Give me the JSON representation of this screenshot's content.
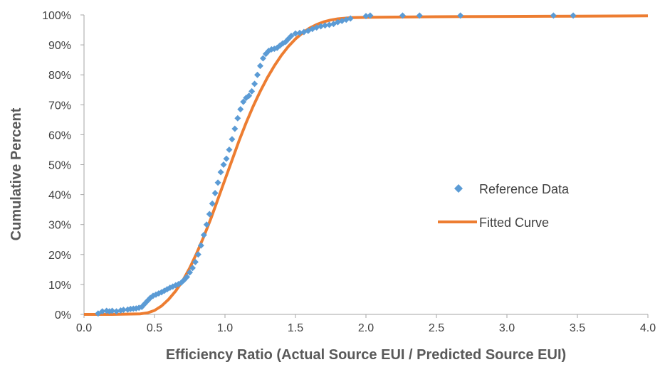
{
  "chart_data": {
    "type": "scatter",
    "title": "",
    "xlabel": "Efficiency Ratio (Actual Source EUI / Predicted Source EUI)",
    "ylabel": "Cumulative Percent",
    "xlim": [
      0,
      4
    ],
    "ylim": [
      0,
      100
    ],
    "x_ticks": [
      "0.0",
      "0.5",
      "1.0",
      "1.5",
      "2.0",
      "2.5",
      "3.0",
      "3.5",
      "4.0"
    ],
    "y_ticks": [
      "0%",
      "10%",
      "20%",
      "30%",
      "40%",
      "50%",
      "60%",
      "70%",
      "80%",
      "90%",
      "100%"
    ],
    "grid": false,
    "legend_position": "right",
    "series": [
      {
        "name": "Reference Data",
        "kind": "scatter",
        "marker": "diamond",
        "color": "#5B9BD5",
        "points": [
          [
            0.1,
            0.3
          ],
          [
            0.13,
            1.0
          ],
          [
            0.16,
            1.2
          ],
          [
            0.18,
            1.0
          ],
          [
            0.2,
            1.2
          ],
          [
            0.23,
            1.0
          ],
          [
            0.26,
            1.3
          ],
          [
            0.28,
            1.5
          ],
          [
            0.31,
            1.6
          ],
          [
            0.33,
            1.8
          ],
          [
            0.35,
            1.9
          ],
          [
            0.37,
            2.0
          ],
          [
            0.39,
            2.2
          ],
          [
            0.41,
            2.5
          ],
          [
            0.43,
            3.5
          ],
          [
            0.45,
            4.5
          ],
          [
            0.47,
            5.5
          ],
          [
            0.49,
            6.2
          ],
          [
            0.51,
            6.6
          ],
          [
            0.53,
            7.0
          ],
          [
            0.55,
            7.4
          ],
          [
            0.57,
            7.9
          ],
          [
            0.59,
            8.4
          ],
          [
            0.61,
            8.9
          ],
          [
            0.63,
            9.3
          ],
          [
            0.65,
            9.7
          ],
          [
            0.67,
            10.1
          ],
          [
            0.69,
            10.6
          ],
          [
            0.71,
            11.5
          ],
          [
            0.73,
            12.5
          ],
          [
            0.75,
            14.0
          ],
          [
            0.77,
            15.5
          ],
          [
            0.79,
            17.5
          ],
          [
            0.81,
            20.0
          ],
          [
            0.83,
            23.0
          ],
          [
            0.85,
            26.5
          ],
          [
            0.87,
            30.0
          ],
          [
            0.89,
            33.5
          ],
          [
            0.91,
            37.0
          ],
          [
            0.93,
            40.5
          ],
          [
            0.95,
            44.0
          ],
          [
            0.97,
            47.5
          ],
          [
            0.99,
            50.0
          ],
          [
            1.01,
            52.0
          ],
          [
            1.03,
            55.0
          ],
          [
            1.05,
            58.5
          ],
          [
            1.07,
            62.0
          ],
          [
            1.09,
            65.5
          ],
          [
            1.11,
            68.5
          ],
          [
            1.13,
            71.0
          ],
          [
            1.15,
            72.3
          ],
          [
            1.17,
            73.0
          ],
          [
            1.19,
            74.5
          ],
          [
            1.21,
            77.0
          ],
          [
            1.23,
            80.0
          ],
          [
            1.25,
            83.0
          ],
          [
            1.27,
            85.5
          ],
          [
            1.29,
            87.0
          ],
          [
            1.31,
            88.0
          ],
          [
            1.33,
            88.5
          ],
          [
            1.35,
            88.7
          ],
          [
            1.37,
            89.0
          ],
          [
            1.39,
            89.8
          ],
          [
            1.41,
            90.5
          ],
          [
            1.43,
            91.0
          ],
          [
            1.45,
            92.0
          ],
          [
            1.47,
            93.0
          ],
          [
            1.5,
            93.8
          ],
          [
            1.53,
            94.0
          ],
          [
            1.56,
            94.3
          ],
          [
            1.59,
            94.7
          ],
          [
            1.62,
            95.3
          ],
          [
            1.65,
            95.8
          ],
          [
            1.68,
            96.2
          ],
          [
            1.71,
            96.5
          ],
          [
            1.74,
            96.7
          ],
          [
            1.77,
            97.0
          ],
          [
            1.8,
            97.6
          ],
          [
            1.83,
            98.0
          ],
          [
            1.86,
            98.4
          ],
          [
            1.89,
            98.8
          ],
          [
            2.0,
            99.6
          ],
          [
            2.03,
            99.8
          ],
          [
            2.26,
            99.8
          ],
          [
            2.38,
            99.8
          ],
          [
            2.67,
            99.8
          ],
          [
            3.33,
            99.8
          ],
          [
            3.47,
            99.8
          ]
        ]
      },
      {
        "name": "Fitted Curve",
        "kind": "line",
        "color": "#ED7D31",
        "points": [
          [
            0.0,
            0.0
          ],
          [
            0.2,
            0.0
          ],
          [
            0.4,
            0.2
          ],
          [
            0.45,
            0.5
          ],
          [
            0.5,
            1.3
          ],
          [
            0.55,
            2.8
          ],
          [
            0.6,
            5.0
          ],
          [
            0.65,
            7.8
          ],
          [
            0.7,
            11.2
          ],
          [
            0.75,
            15.5
          ],
          [
            0.8,
            20.5
          ],
          [
            0.85,
            26.0
          ],
          [
            0.9,
            32.0
          ],
          [
            0.95,
            38.5
          ],
          [
            1.0,
            45.0
          ],
          [
            1.05,
            51.5
          ],
          [
            1.1,
            58.0
          ],
          [
            1.15,
            64.0
          ],
          [
            1.2,
            69.5
          ],
          [
            1.25,
            74.5
          ],
          [
            1.3,
            79.0
          ],
          [
            1.35,
            83.0
          ],
          [
            1.4,
            86.5
          ],
          [
            1.45,
            89.5
          ],
          [
            1.5,
            92.0
          ],
          [
            1.55,
            94.0
          ],
          [
            1.6,
            95.6
          ],
          [
            1.65,
            96.8
          ],
          [
            1.7,
            97.7
          ],
          [
            1.75,
            98.3
          ],
          [
            1.8,
            98.7
          ],
          [
            1.9,
            99.1
          ],
          [
            2.0,
            99.2
          ],
          [
            2.5,
            99.4
          ],
          [
            3.0,
            99.5
          ],
          [
            3.5,
            99.6
          ],
          [
            4.0,
            99.7
          ]
        ]
      }
    ]
  }
}
